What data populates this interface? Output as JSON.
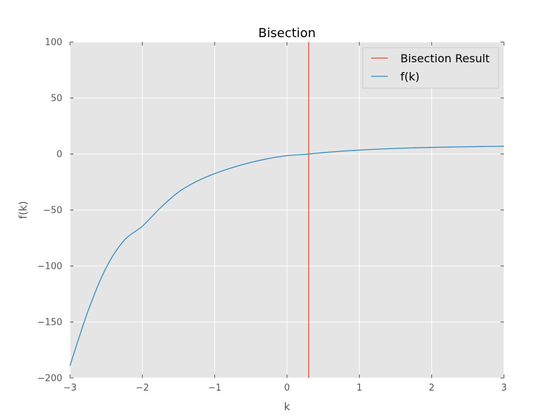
{
  "chart_data": {
    "type": "line",
    "title": "Bisection",
    "xlabel": "k",
    "ylabel": "f(k)",
    "xlim": [
      -3,
      3
    ],
    "ylim": [
      -200,
      100
    ],
    "grid": true,
    "legend_position": "top-right",
    "x_ticks": [
      -3,
      -2,
      -1,
      0,
      1,
      2,
      3
    ],
    "x_tick_labels": [
      "−3",
      "−2",
      "−1",
      "0",
      "1",
      "2",
      "3"
    ],
    "y_ticks": [
      -200,
      -150,
      -100,
      -50,
      0,
      50,
      100
    ],
    "y_tick_labels": [
      "−200",
      "−150",
      "−100",
      "−50",
      "0",
      "50",
      "100"
    ],
    "series": [
      {
        "name": "Bisection Result",
        "kind": "vline",
        "x": 0.3,
        "color": "#e24a33"
      },
      {
        "name": "f(k)",
        "kind": "curve",
        "color": "#348abd",
        "x": [
          -3.0,
          -2.75,
          -2.5,
          -2.25,
          -2.0,
          -1.75,
          -1.5,
          -1.25,
          -1.0,
          -0.75,
          -0.5,
          -0.25,
          0.0,
          0.25,
          0.3,
          0.5,
          0.75,
          1.0,
          1.25,
          1.5,
          1.75,
          2.0,
          2.25,
          2.5,
          2.75,
          3.0
        ],
        "y": [
          -189.0,
          -140.0,
          -101.5,
          -77.0,
          -64.5,
          -48.0,
          -34.0,
          -24.5,
          -17.5,
          -12.0,
          -7.5,
          -4.0,
          -1.5,
          -0.3,
          0.0,
          1.2,
          2.5,
          3.5,
          4.3,
          5.0,
          5.5,
          5.9,
          6.2,
          6.5,
          6.7,
          6.9
        ]
      }
    ],
    "colors": {
      "plot_background": "#e5e5e5",
      "grid": "#ffffff",
      "tick": "#555555"
    }
  }
}
